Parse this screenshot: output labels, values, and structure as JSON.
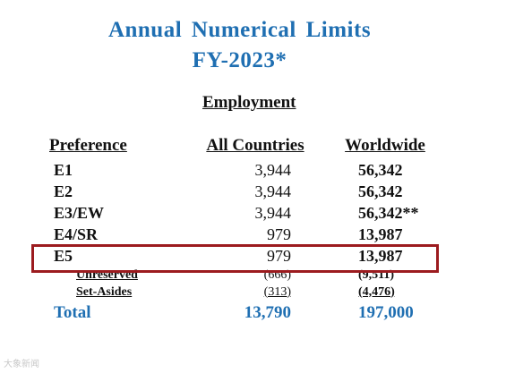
{
  "title": {
    "line1": "Annual  Numerical  Limits",
    "line2": "FY-2023*"
  },
  "section_heading": "Employment",
  "columns": {
    "preference": "Preference",
    "all_countries": "All Countries",
    "worldwide": "Worldwide"
  },
  "rows": [
    {
      "preference": "E1",
      "all_countries": "3,944",
      "worldwide": "56,342"
    },
    {
      "preference": "E2",
      "all_countries": "3,944",
      "worldwide": "56,342"
    },
    {
      "preference": "E3/EW",
      "all_countries": "3,944",
      "worldwide": "56,342**"
    },
    {
      "preference": "E4/SR",
      "all_countries": "979",
      "worldwide": "13,987"
    },
    {
      "preference": "E5",
      "all_countries": "979",
      "worldwide": "13,987"
    }
  ],
  "subrows": [
    {
      "preference": "Unreserved",
      "all_countries": "(666)",
      "worldwide": "(9,511)"
    },
    {
      "preference": "Set-Asides",
      "all_countries": "(313)",
      "worldwide": "(4,476)"
    }
  ],
  "total": {
    "label": "Total",
    "all_countries": "13,790",
    "worldwide": "197,000"
  },
  "highlighted_row": "E5",
  "colors": {
    "title": "#1f6fb2",
    "highlight_border": "#9c1b1f"
  },
  "watermark": "大象新闻"
}
